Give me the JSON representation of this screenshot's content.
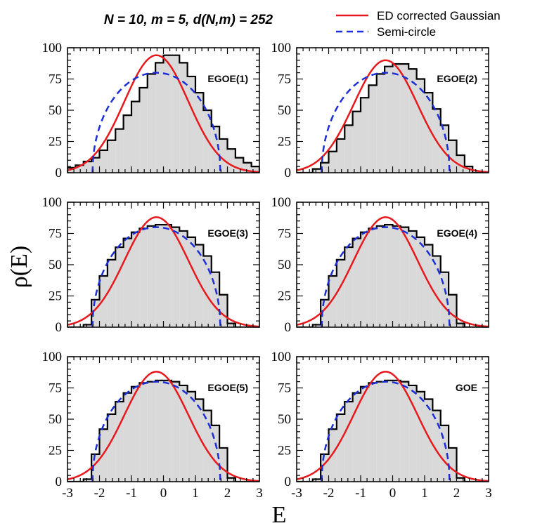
{
  "title": "N = 10, m = 5, d(N,m) = 252",
  "legend": {
    "position": "top-right",
    "items": [
      {
        "label": "ED corrected Gaussian",
        "color": "#e8191c",
        "style": "solid"
      },
      {
        "label": "Semi-circle",
        "color": "#1c2fd6",
        "style": "dashed"
      }
    ]
  },
  "axes": {
    "xlabel": "E",
    "ylabel": "ρ(E)",
    "xlim": [
      -3,
      3
    ],
    "ylim": [
      0,
      100
    ],
    "xticks": [
      "-3",
      "-2",
      "-1",
      "0",
      "1",
      "2",
      "3"
    ],
    "yticks": [
      "0",
      "25",
      "50",
      "75",
      "100"
    ]
  },
  "colors": {
    "histogram_fill": "#d9d9d9",
    "histogram_edge": "#000000"
  },
  "chart_data": [
    {
      "type": "histogram",
      "panel": "EGOE(1)",
      "bin_edges_start": -3.0,
      "bin_width": 0.25,
      "values": [
        4,
        6,
        9,
        12,
        18,
        26,
        35,
        46,
        57,
        68,
        79,
        88,
        94,
        94,
        88,
        77,
        64,
        50,
        37,
        27,
        19,
        12,
        8,
        5
      ],
      "gaussian_peak": 94,
      "semicircle_peak": 80,
      "center": -0.22,
      "semicircle_radius": 2.0,
      "gaussian_sigma": 1.0
    },
    {
      "type": "histogram",
      "panel": "EGOE(2)",
      "bin_edges_start": -3.0,
      "bin_width": 0.25,
      "values": [
        0,
        0,
        3,
        8,
        17,
        27,
        38,
        49,
        60,
        70,
        79,
        85,
        87,
        87,
        83,
        75,
        64,
        51,
        38,
        26,
        14,
        5,
        0,
        0
      ],
      "gaussian_peak": 90,
      "semicircle_peak": 80,
      "center": -0.22,
      "semicircle_radius": 2.0,
      "gaussian_sigma": 1.0
    },
    {
      "type": "histogram",
      "panel": "EGOE(3)",
      "bin_edges_start": -3.0,
      "bin_width": 0.25,
      "values": [
        0,
        0,
        2,
        22,
        41,
        54,
        64,
        71,
        76,
        79,
        81,
        82,
        82,
        80,
        77,
        72,
        66,
        57,
        44,
        26,
        3,
        0,
        0,
        0
      ],
      "gaussian_peak": 88,
      "semicircle_peak": 80,
      "center": -0.22,
      "semicircle_radius": 2.0,
      "gaussian_sigma": 1.0
    },
    {
      "type": "histogram",
      "panel": "EGOE(4)",
      "bin_edges_start": -3.0,
      "bin_width": 0.25,
      "values": [
        0,
        0,
        2,
        22,
        41,
        54,
        64,
        71,
        76,
        79,
        81,
        82,
        81,
        80,
        77,
        72,
        66,
        57,
        44,
        26,
        3,
        0,
        0,
        0
      ],
      "gaussian_peak": 88,
      "semicircle_peak": 80,
      "center": -0.22,
      "semicircle_radius": 2.0,
      "gaussian_sigma": 1.0
    },
    {
      "type": "histogram",
      "panel": "EGOE(5)",
      "bin_edges_start": -3.0,
      "bin_width": 0.25,
      "values": [
        0,
        0,
        2,
        22,
        42,
        54,
        64,
        71,
        76,
        79,
        80,
        81,
        81,
        80,
        77,
        72,
        66,
        57,
        45,
        27,
        3,
        0,
        0,
        0
      ],
      "gaussian_peak": 88,
      "semicircle_peak": 80,
      "center": -0.22,
      "semicircle_radius": 2.0,
      "gaussian_sigma": 1.0
    },
    {
      "type": "histogram",
      "panel": "GOE",
      "bin_edges_start": -3.0,
      "bin_width": 0.25,
      "values": [
        0,
        0,
        2,
        22,
        42,
        54,
        64,
        71,
        76,
        79,
        80,
        81,
        81,
        80,
        77,
        72,
        66,
        57,
        45,
        27,
        3,
        0,
        0,
        0
      ],
      "gaussian_peak": 88,
      "semicircle_peak": 80,
      "center": -0.22,
      "semicircle_radius": 2.0,
      "gaussian_sigma": 1.0
    }
  ]
}
